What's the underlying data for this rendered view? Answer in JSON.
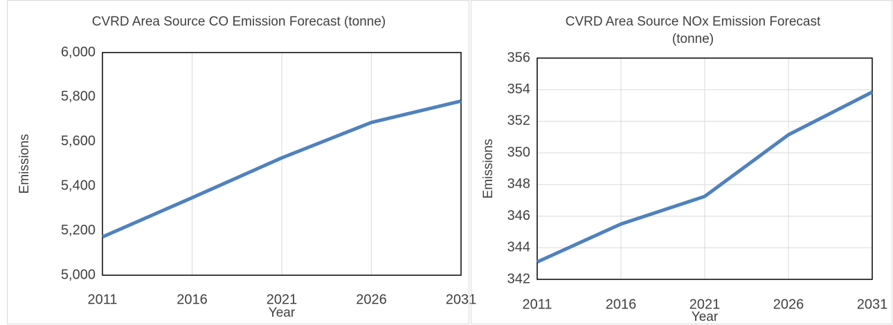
{
  "chart_data": [
    {
      "type": "line",
      "title": "CVRD Area Source CO Emission Forecast (tonne)",
      "xlabel": "Year",
      "ylabel": "Emissions",
      "x": [
        2011,
        2016,
        2021,
        2026,
        2031
      ],
      "series": [
        {
          "name": "CO",
          "color": "#4f81bd",
          "values": [
            5172,
            5348,
            5527,
            5686,
            5782
          ]
        }
      ],
      "xlim": [
        2011,
        2031
      ],
      "xticks": [
        2011,
        2016,
        2021,
        2026,
        2031
      ],
      "ylim": [
        5000,
        6000
      ],
      "yticks": [
        {
          "value": 5000,
          "label": "5,000"
        },
        {
          "value": 5200,
          "label": "5,200"
        },
        {
          "value": 5400,
          "label": "5,400"
        },
        {
          "value": 5600,
          "label": "5,600"
        },
        {
          "value": 5800,
          "label": "5,800"
        },
        {
          "value": 6000,
          "label": "6,000"
        }
      ],
      "xgrid": true,
      "ygrid": false
    },
    {
      "type": "line",
      "title": "CVRD Area Source NOx Emission Forecast (tonne)",
      "xlabel": "Year",
      "ylabel": "Emissions",
      "x": [
        2011,
        2016,
        2021,
        2026,
        2031
      ],
      "series": [
        {
          "name": "NOx",
          "color": "#4f81bd",
          "values": [
            343.1,
            345.5,
            347.25,
            351.15,
            353.85
          ]
        }
      ],
      "xlim": [
        2011,
        2031
      ],
      "xticks": [
        2011,
        2016,
        2021,
        2026,
        2031
      ],
      "ylim": [
        342,
        356
      ],
      "yticks": [
        342,
        344,
        346,
        348,
        350,
        352,
        354,
        356
      ],
      "xgrid": true,
      "ygrid": true
    }
  ]
}
